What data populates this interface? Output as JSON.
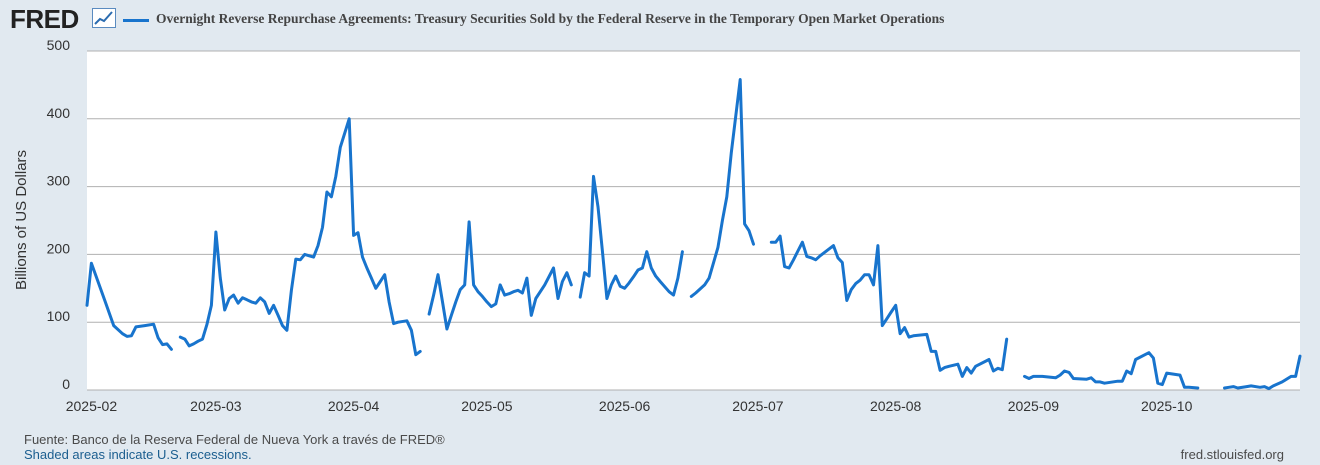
{
  "header": {
    "logo_text": "FRED",
    "legend_label": "Overnight Reverse Repurchase Agreements: Treasury Securities Sold by the Federal Reserve in the Temporary Open Market Operations"
  },
  "footer": {
    "source": "Fuente: Banco de la Reserva Federal de Nueva York a través de FRED®",
    "recession_note": "Shaded areas indicate U.S. recessions.",
    "site": "fred.stlouisfed.org"
  },
  "colors": {
    "series": "#1874cd",
    "background": "#e1e9f0",
    "plot": "#ffffff",
    "grid": "#b0b0b0"
  },
  "chart_data": {
    "type": "line",
    "title": "Overnight Reverse Repurchase Agreements: Treasury Securities Sold by the Federal Reserve in the Temporary Open Market Operations",
    "xlabel": "",
    "ylabel": "Billions of US Dollars",
    "ylim": [
      0,
      500
    ],
    "yticks": [
      0,
      100,
      200,
      300,
      400,
      500
    ],
    "ytick_labels": [
      "0",
      "100",
      "200",
      "300",
      "400",
      "500"
    ],
    "xlim": [
      "2025-01-31",
      "2025-10-31"
    ],
    "xticks": [
      "2025-02-01",
      "2025-03-01",
      "2025-04-01",
      "2025-05-01",
      "2025-06-01",
      "2025-07-01",
      "2025-08-01",
      "2025-09-01",
      "2025-10-01"
    ],
    "xtick_labels": [
      "2025-02",
      "2025-03",
      "2025-04",
      "2025-05",
      "2025-06",
      "2025-07",
      "2025-08",
      "2025-09",
      "2025-10"
    ],
    "grid": true,
    "legend": "top-left",
    "series": [
      {
        "name": "Overnight Reverse Repurchase Agreements",
        "segments": [
          [
            [
              "2025-01-31",
              125
            ],
            [
              "2025-02-01",
              187
            ],
            [
              "2025-02-04",
              132
            ],
            [
              "2025-02-06",
              95
            ],
            [
              "2025-02-08",
              83
            ],
            [
              "2025-02-09",
              79
            ],
            [
              "2025-02-10",
              80
            ],
            [
              "2025-02-11",
              93
            ],
            [
              "2025-02-13",
              95
            ],
            [
              "2025-02-15",
              97
            ],
            [
              "2025-02-16",
              77
            ],
            [
              "2025-02-17",
              67
            ],
            [
              "2025-02-18",
              68
            ],
            [
              "2025-02-19",
              60
            ]
          ],
          [
            [
              "2025-02-21",
              78
            ],
            [
              "2025-02-22",
              75
            ],
            [
              "2025-02-23",
              65
            ],
            [
              "2025-02-24",
              68
            ],
            [
              "2025-02-25",
              72
            ],
            [
              "2025-02-26",
              75
            ],
            [
              "2025-02-27",
              97
            ],
            [
              "2025-02-28",
              125
            ],
            [
              "2025-03-01",
              233
            ],
            [
              "2025-03-02",
              165
            ],
            [
              "2025-03-03",
              118
            ],
            [
              "2025-03-04",
              135
            ],
            [
              "2025-03-05",
              140
            ],
            [
              "2025-03-06",
              128
            ],
            [
              "2025-03-07",
              136
            ],
            [
              "2025-03-08",
              133
            ],
            [
              "2025-03-09",
              130
            ],
            [
              "2025-03-10",
              128
            ],
            [
              "2025-03-11",
              136
            ],
            [
              "2025-03-12",
              130
            ],
            [
              "2025-03-13",
              113
            ],
            [
              "2025-03-14",
              125
            ],
            [
              "2025-03-15",
              110
            ],
            [
              "2025-03-16",
              95
            ],
            [
              "2025-03-17",
              88
            ],
            [
              "2025-03-18",
              147
            ],
            [
              "2025-03-19",
              193
            ],
            [
              "2025-03-20",
              192
            ],
            [
              "2025-03-21",
              200
            ],
            [
              "2025-03-22",
              198
            ],
            [
              "2025-03-23",
              196
            ],
            [
              "2025-03-24",
              213
            ],
            [
              "2025-03-25",
              240
            ],
            [
              "2025-03-26",
              292
            ],
            [
              "2025-03-27",
              285
            ],
            [
              "2025-03-28",
              315
            ],
            [
              "2025-03-29",
              358
            ],
            [
              "2025-03-31",
              400
            ],
            [
              "2025-04-01",
              228
            ],
            [
              "2025-04-02",
              232
            ],
            [
              "2025-04-03",
              196
            ],
            [
              "2025-04-04",
              180
            ],
            [
              "2025-04-05",
              165
            ],
            [
              "2025-04-06",
              150
            ],
            [
              "2025-04-07",
              160
            ],
            [
              "2025-04-08",
              170
            ],
            [
              "2025-04-09",
              130
            ],
            [
              "2025-04-10",
              98
            ],
            [
              "2025-04-11",
              100
            ],
            [
              "2025-04-13",
              102
            ],
            [
              "2025-04-14",
              88
            ],
            [
              "2025-04-15",
              52
            ],
            [
              "2025-04-16",
              57
            ]
          ],
          [
            [
              "2025-04-18",
              112
            ],
            [
              "2025-04-19",
              140
            ],
            [
              "2025-04-20",
              170
            ],
            [
              "2025-04-21",
              130
            ],
            [
              "2025-04-22",
              90
            ],
            [
              "2025-04-23",
              110
            ],
            [
              "2025-04-24",
              130
            ],
            [
              "2025-04-25",
              148
            ],
            [
              "2025-04-26",
              155
            ],
            [
              "2025-04-27",
              248
            ],
            [
              "2025-04-28",
              155
            ],
            [
              "2025-04-29",
              145
            ],
            [
              "2025-04-30",
              138
            ],
            [
              "2025-05-01",
              130
            ],
            [
              "2025-05-02",
              123
            ],
            [
              "2025-05-03",
              127
            ],
            [
              "2025-05-04",
              155
            ],
            [
              "2025-05-05",
              140
            ],
            [
              "2025-05-06",
              142
            ],
            [
              "2025-05-07",
              145
            ],
            [
              "2025-05-08",
              147
            ],
            [
              "2025-05-09",
              143
            ],
            [
              "2025-05-10",
              165
            ],
            [
              "2025-05-11",
              110
            ],
            [
              "2025-05-12",
              135
            ],
            [
              "2025-05-14",
              155
            ],
            [
              "2025-05-16",
              180
            ],
            [
              "2025-05-17",
              135
            ],
            [
              "2025-05-18",
              160
            ],
            [
              "2025-05-19",
              173
            ],
            [
              "2025-05-20",
              155
            ]
          ],
          [
            [
              "2025-05-22",
              137
            ],
            [
              "2025-05-23",
              173
            ],
            [
              "2025-05-24",
              168
            ],
            [
              "2025-05-25",
              315
            ],
            [
              "2025-05-26",
              270
            ],
            [
              "2025-05-27",
              205
            ],
            [
              "2025-05-28",
              135
            ],
            [
              "2025-05-29",
              155
            ],
            [
              "2025-05-30",
              168
            ],
            [
              "2025-05-31",
              153
            ],
            [
              "2025-06-01",
              150
            ],
            [
              "2025-06-02",
              158
            ],
            [
              "2025-06-03",
              167
            ],
            [
              "2025-06-04",
              177
            ],
            [
              "2025-06-05",
              180
            ],
            [
              "2025-06-06",
              204
            ],
            [
              "2025-06-07",
              180
            ],
            [
              "2025-06-08",
              168
            ],
            [
              "2025-06-09",
              160
            ],
            [
              "2025-06-11",
              145
            ],
            [
              "2025-06-12",
              140
            ],
            [
              "2025-06-13",
              165
            ],
            [
              "2025-06-14",
              204
            ]
          ],
          [
            [
              "2025-06-16",
              138
            ],
            [
              "2025-06-17",
              143
            ],
            [
              "2025-06-19",
              155
            ],
            [
              "2025-06-20",
              165
            ],
            [
              "2025-06-22",
              210
            ],
            [
              "2025-06-23",
              250
            ],
            [
              "2025-06-24",
              285
            ],
            [
              "2025-06-25",
              350
            ],
            [
              "2025-06-27",
              458
            ],
            [
              "2025-06-28",
              245
            ],
            [
              "2025-06-29",
              235
            ],
            [
              "2025-06-30",
              215
            ]
          ],
          [
            [
              "2025-07-04",
              218
            ],
            [
              "2025-07-05",
              218
            ],
            [
              "2025-07-06",
              227
            ],
            [
              "2025-07-07",
              182
            ],
            [
              "2025-07-08",
              180
            ],
            [
              "2025-07-09",
              192
            ],
            [
              "2025-07-10",
              205
            ],
            [
              "2025-07-11",
              218
            ],
            [
              "2025-07-12",
              197
            ],
            [
              "2025-07-13",
              195
            ],
            [
              "2025-07-14",
              192
            ],
            [
              "2025-07-15",
              198
            ],
            [
              "2025-07-18",
              213
            ],
            [
              "2025-07-19",
              195
            ],
            [
              "2025-07-20",
              188
            ],
            [
              "2025-07-21",
              132
            ],
            [
              "2025-07-22",
              148
            ],
            [
              "2025-07-23",
              157
            ],
            [
              "2025-07-24",
              162
            ],
            [
              "2025-07-25",
              170
            ],
            [
              "2025-07-26",
              170
            ],
            [
              "2025-07-27",
              155
            ],
            [
              "2025-07-28",
              213
            ],
            [
              "2025-07-29",
              95
            ],
            [
              "2025-07-30",
              105
            ],
            [
              "2025-07-31",
              115
            ],
            [
              "2025-08-01",
              125
            ],
            [
              "2025-08-02",
              83
            ],
            [
              "2025-08-03",
              92
            ],
            [
              "2025-08-04",
              78
            ],
            [
              "2025-08-05",
              80
            ],
            [
              "2025-08-08",
              82
            ],
            [
              "2025-08-09",
              57
            ],
            [
              "2025-08-10",
              57
            ],
            [
              "2025-08-11",
              29
            ],
            [
              "2025-08-12",
              33
            ],
            [
              "2025-08-13",
              35
            ],
            [
              "2025-08-15",
              38
            ],
            [
              "2025-08-16",
              20
            ],
            [
              "2025-08-17",
              33
            ],
            [
              "2025-08-18",
              25
            ],
            [
              "2025-08-19",
              35
            ],
            [
              "2025-08-22",
              45
            ],
            [
              "2025-08-23",
              28
            ],
            [
              "2025-08-24",
              32
            ],
            [
              "2025-08-25",
              30
            ],
            [
              "2025-08-26",
              75
            ]
          ],
          [
            [
              "2025-08-30",
              20
            ],
            [
              "2025-08-31",
              17
            ],
            [
              "2025-09-01",
              20
            ],
            [
              "2025-09-03",
              20
            ],
            [
              "2025-09-06",
              18
            ],
            [
              "2025-09-07",
              22
            ],
            [
              "2025-09-08",
              28
            ],
            [
              "2025-09-09",
              26
            ],
            [
              "2025-09-10",
              17
            ],
            [
              "2025-09-13",
              16
            ],
            [
              "2025-09-14",
              18
            ],
            [
              "2025-09-15",
              12
            ],
            [
              "2025-09-16",
              12
            ],
            [
              "2025-09-17",
              10
            ],
            [
              "2025-09-20",
              13
            ],
            [
              "2025-09-21",
              13
            ],
            [
              "2025-09-22",
              28
            ],
            [
              "2025-09-23",
              24
            ],
            [
              "2025-09-24",
              45
            ],
            [
              "2025-09-27",
              55
            ],
            [
              "2025-09-28",
              47
            ],
            [
              "2025-09-29",
              10
            ],
            [
              "2025-09-30",
              8
            ],
            [
              "2025-10-01",
              25
            ],
            [
              "2025-10-04",
              22
            ],
            [
              "2025-10-05",
              4
            ],
            [
              "2025-10-06",
              4
            ],
            [
              "2025-10-08",
              3
            ]
          ],
          [
            [
              "2025-10-14",
              3
            ],
            [
              "2025-10-15",
              4
            ],
            [
              "2025-10-16",
              5
            ],
            [
              "2025-10-17",
              3
            ],
            [
              "2025-10-19",
              5
            ],
            [
              "2025-10-20",
              6
            ],
            [
              "2025-10-22",
              4
            ],
            [
              "2025-10-23",
              5
            ],
            [
              "2025-10-24",
              2
            ],
            [
              "2025-10-25",
              6
            ],
            [
              "2025-10-27",
              12
            ],
            [
              "2025-10-29",
              20
            ],
            [
              "2025-10-30",
              20
            ],
            [
              "2025-10-31",
              50
            ]
          ]
        ]
      }
    ]
  }
}
